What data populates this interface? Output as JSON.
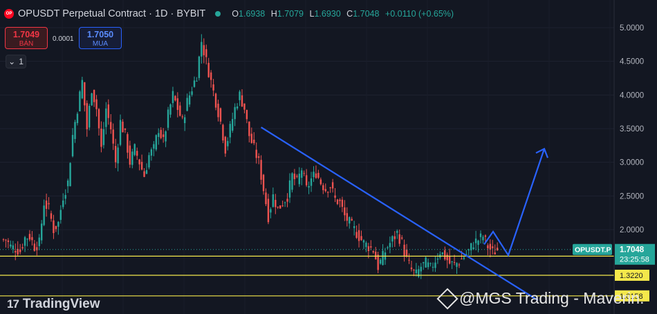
{
  "header": {
    "title": "OPUSDT Perpetual Contract · 1D · BYBIT",
    "logo_text": "OP",
    "ohlc": [
      {
        "label": "O",
        "value": "1.6938"
      },
      {
        "label": "H",
        "value": "1.7079"
      },
      {
        "label": "L",
        "value": "1.6930"
      },
      {
        "label": "C",
        "value": "1.7048"
      }
    ],
    "change": "+0.0110 (+0.65%)"
  },
  "trade": {
    "sell_price": "1.7049",
    "sell_label": "BÁN",
    "spread": "0.0001",
    "buy_price": "1.7050",
    "buy_label": "MUA",
    "lots": "1"
  },
  "brand": {
    "name": "TradingView",
    "logo": "17"
  },
  "watermark": "@MGS Trading - Maverin.",
  "price_tag": {
    "symbol": "OPUSDT.P",
    "price": "1.7048",
    "countdown": "23:25:58"
  },
  "colors": {
    "up": "#26a69a",
    "down": "#ef5350",
    "trend": "#2962ff",
    "level": "#f5e84b",
    "bg": "#131722"
  },
  "chart_data": {
    "type": "candlestick",
    "y_ticks": [
      "5.0000",
      "4.5000",
      "4.0000",
      "3.5000",
      "3.0000",
      "2.5000",
      "2.0000"
    ],
    "ylim": [
      1.22,
      5.36
    ],
    "grid": true,
    "levels": [
      {
        "value": 1.6059,
        "label": "1.6059"
      },
      {
        "value": 1.322,
        "label": "1.3220"
      },
      {
        "value": 1.0158,
        "label": "1.0158"
      }
    ],
    "current_price": 1.7048,
    "closes": [
      1.85,
      1.75,
      1.72,
      1.68,
      1.88,
      1.9,
      1.75,
      1.8,
      2.4,
      2.3,
      2.0,
      2.1,
      2.5,
      2.7,
      3.4,
      3.8,
      4.2,
      3.5,
      4.1,
      3.8,
      3.2,
      3.8,
      3.5,
      3.0,
      3.6,
      3.4,
      3.0,
      3.2,
      3.0,
      2.8,
      3.1,
      3.2,
      3.5,
      3.3,
      3.7,
      4.0,
      3.8,
      3.6,
      3.9,
      4.1,
      4.3,
      4.8,
      4.5,
      4.2,
      3.9,
      3.6,
      3.2,
      3.5,
      3.8,
      4.0,
      3.8,
      3.4,
      3.2,
      3.0,
      2.6,
      2.2,
      2.5,
      2.3,
      2.4,
      2.5,
      2.8,
      2.7,
      2.9,
      2.6,
      2.75,
      2.85,
      2.7,
      2.6,
      2.65,
      2.45,
      2.4,
      2.2,
      2.1,
      2.0,
      1.9,
      1.8,
      1.75,
      1.7,
      1.45,
      1.6,
      1.75,
      1.85,
      1.95,
      1.8,
      1.55,
      1.4,
      1.33,
      1.45,
      1.5,
      1.42,
      1.55,
      1.68,
      1.6,
      1.5,
      1.48,
      1.52,
      1.6,
      1.68,
      1.8,
      1.85,
      1.9,
      1.75,
      1.66,
      1.7
    ],
    "trendline": {
      "start": {
        "index": 54,
        "value": 3.52
      },
      "end": {
        "index": 112,
        "value": 0.95
      }
    },
    "projection": [
      1.78,
      1.97,
      1.62,
      3.2
    ]
  }
}
